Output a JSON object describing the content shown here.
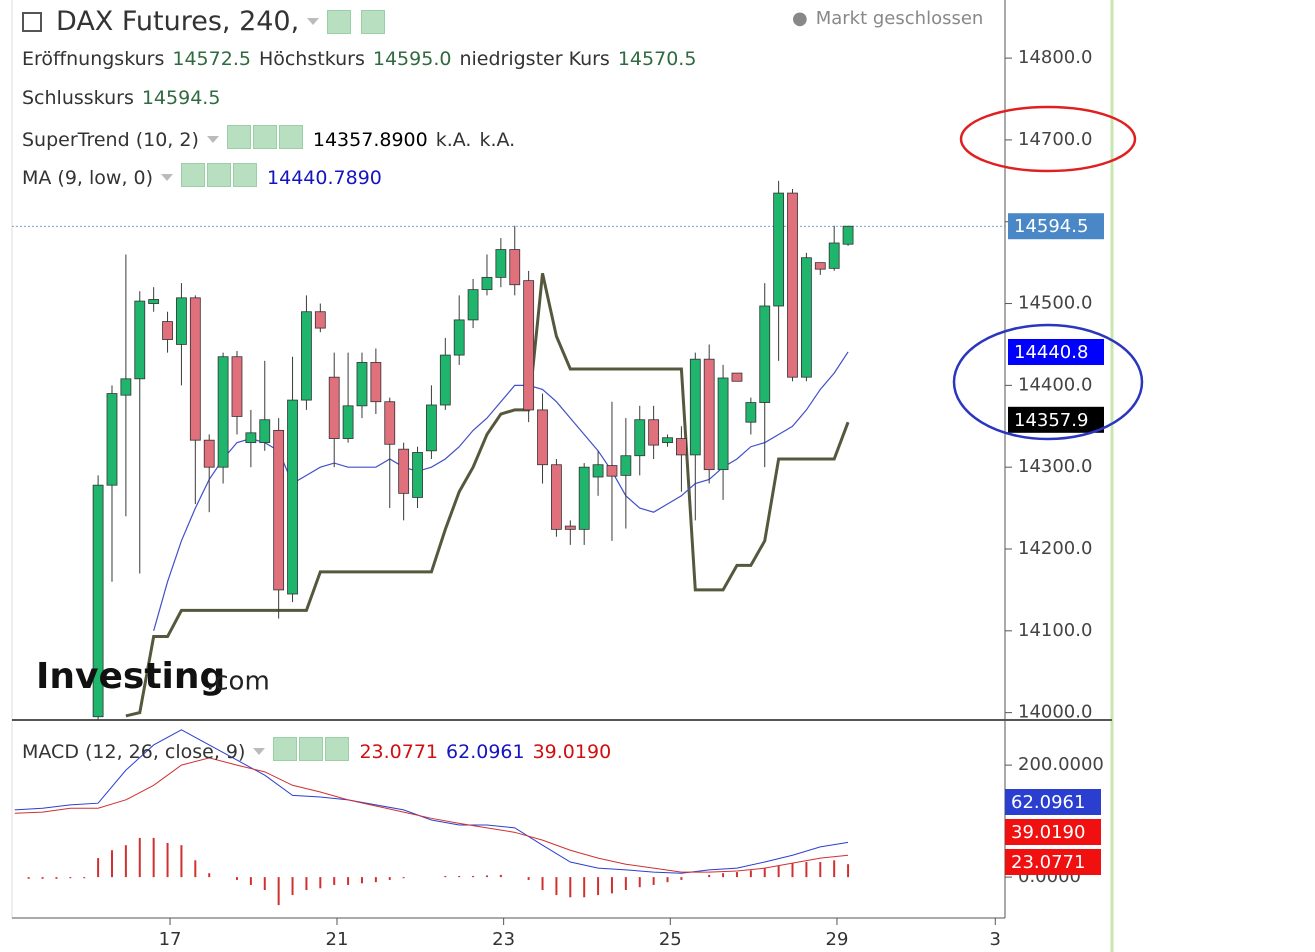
{
  "header": {
    "title": "DAX Futures, 240,",
    "status": "Markt geschlossen",
    "ohlc": [
      {
        "label": "Eröffnungskurs",
        "value": "14572.5"
      },
      {
        "label": "Höchstkurs",
        "value": "14595.0"
      },
      {
        "label": "niedrigster Kurs",
        "value": "14570.5"
      },
      {
        "label": "Schlusskurs",
        "value": "14594.5"
      }
    ]
  },
  "watermark": {
    "brand": "Investing",
    "suffix": ".com"
  },
  "chart_data": [
    {
      "type": "candlestick",
      "up_color": "#1fb56c",
      "down_color": "#e0707c",
      "xlim": [
        -6.2,
        65.3
      ],
      "ylim": [
        13991,
        14871
      ],
      "yticks": [
        {
          "value": 14000,
          "label": "14000.0"
        },
        {
          "value": 14100,
          "label": "14100.0"
        },
        {
          "value": 14200,
          "label": "14200.0"
        },
        {
          "value": 14300,
          "label": "14300.0"
        },
        {
          "value": 14400,
          "label": "14400.0"
        },
        {
          "value": 14500,
          "label": "14500.0"
        },
        {
          "value": 14600,
          "label": "14600.0"
        },
        {
          "value": 14700,
          "label": "14700.0"
        },
        {
          "value": 14800,
          "label": "14800.0"
        }
      ],
      "x": [
        0,
        1,
        2,
        3,
        4,
        5,
        6,
        7,
        8,
        9,
        10,
        11,
        12,
        13,
        14,
        15,
        16,
        17,
        18,
        19,
        20,
        21,
        22,
        23,
        24,
        25,
        26,
        27,
        28,
        29,
        30,
        31,
        32,
        33,
        34,
        35,
        36,
        37,
        38,
        39,
        40,
        41,
        42,
        43,
        44,
        45,
        46,
        47,
        48,
        49,
        50,
        51,
        52,
        53,
        54
      ],
      "open": [
        13995,
        14278,
        14388,
        14408,
        14500,
        14478,
        14450,
        14507,
        14333,
        14300,
        14435,
        14330,
        14330,
        14345,
        14145,
        14382,
        14490,
        14410,
        14335,
        14375,
        14428,
        14380,
        14322,
        14263,
        14320,
        14376,
        14437,
        14480,
        14517,
        14532,
        14566,
        14528,
        14370,
        14303,
        14228,
        14224,
        14288,
        14302,
        14290,
        14314,
        14358,
        14330,
        14335,
        14315,
        14432,
        14297,
        14415,
        14355,
        14379,
        14497,
        14635,
        14410,
        14550,
        14543,
        14572.5
      ],
      "high": [
        14290,
        14400,
        14560,
        14515,
        14520,
        14490,
        14525,
        14510,
        14340,
        14440,
        14442,
        14370,
        14430,
        14360,
        14435,
        14510,
        14500,
        14440,
        14440,
        14440,
        14445,
        14385,
        14330,
        14325,
        14400,
        14458,
        14510,
        14530,
        14560,
        14580,
        14595,
        14540,
        14390,
        14310,
        14235,
        14305,
        14320,
        14380,
        14360,
        14375,
        14375,
        14340,
        14350,
        14440,
        14450,
        14425,
        14415,
        14385,
        14525,
        14650,
        14640,
        14562,
        14550,
        14595,
        14595
      ],
      "low": [
        13960,
        14160,
        14240,
        14170,
        14490,
        14440,
        14400,
        14255,
        14245,
        14280,
        14340,
        14300,
        14320,
        14115,
        14135,
        14370,
        14465,
        14300,
        14330,
        14360,
        14365,
        14250,
        14235,
        14250,
        14310,
        14370,
        14425,
        14470,
        14510,
        14520,
        14510,
        14355,
        14280,
        14215,
        14205,
        14205,
        14265,
        14210,
        14225,
        14290,
        14310,
        14325,
        14270,
        14235,
        14280,
        14260,
        14405,
        14340,
        14300,
        14430,
        14405,
        14405,
        14535,
        14540,
        14570.5
      ],
      "close": [
        14278,
        14390,
        14408,
        14503,
        14505,
        14456,
        14507,
        14333,
        14300,
        14435,
        14362,
        14342,
        14358,
        14150,
        14382,
        14490,
        14470,
        14335,
        14375,
        14428,
        14380,
        14328,
        14268,
        14318,
        14376,
        14437,
        14480,
        14517,
        14532,
        14566,
        14523,
        14370,
        14303,
        14224,
        14224,
        14300,
        14303,
        14289,
        14314,
        14358,
        14327,
        14336,
        14315,
        14432,
        14297,
        14409,
        14405,
        14379,
        14497,
        14635,
        14410,
        14556,
        14542,
        14574,
        14594.5
      ],
      "series": [
        {
          "name": "SuperTrend (10, 2)",
          "color": "#55583c",
          "width": 3,
          "legend_values": [
            "14357.8900",
            "k.A.",
            "k.A."
          ],
          "values": [
            null,
            null,
            13996,
            14000,
            14093,
            14093,
            14125,
            14125,
            14125,
            14125,
            14125,
            14125,
            14125,
            14125,
            14125,
            14125,
            14172,
            14172,
            14172,
            14172,
            14172,
            14172,
            14172,
            14172,
            14172,
            14224,
            14270,
            14300,
            14340,
            14365,
            14370,
            14370,
            14537,
            14460,
            14420,
            14420,
            14420,
            14420,
            14420,
            14420,
            14420,
            14420,
            14420,
            14150,
            14150,
            14150,
            14180,
            14180,
            14210,
            14310,
            14310,
            14310,
            14310,
            14310,
            14355
          ]
        },
        {
          "name": "MA (9, low, 0)",
          "color": "#4050c8",
          "width": 1.2,
          "legend_values": [
            "14440.7890"
          ],
          "values": [
            null,
            null,
            null,
            null,
            14100,
            14160,
            14210,
            14250,
            14285,
            14310,
            14330,
            14335,
            14330,
            14320,
            14280,
            14290,
            14300,
            14305,
            14300,
            14300,
            14300,
            14310,
            14300,
            14295,
            14300,
            14310,
            14325,
            14345,
            14360,
            14380,
            14400,
            14400,
            14395,
            14380,
            14360,
            14340,
            14320,
            14295,
            14265,
            14250,
            14245,
            14255,
            14265,
            14280,
            14285,
            14300,
            14310,
            14325,
            14330,
            14340,
            14350,
            14370,
            14395,
            14415,
            14440.8
          ]
        }
      ],
      "price_markers": [
        {
          "value": 14594.5,
          "color": "#4a87c7"
        },
        {
          "value": 14440.8,
          "color": "#0000ff"
        },
        {
          "value": 14357.9,
          "color": "#000000"
        }
      ]
    },
    {
      "type": "macd",
      "name": "MACD (12, 26, close, 9)",
      "xlim": [
        -6.2,
        65.3
      ],
      "ylim": [
        -73,
        277
      ],
      "yticks": [
        {
          "value": 200,
          "label": "200.0000"
        },
        {
          "value": 0,
          "label": "0.0000"
        }
      ],
      "xticks": [
        {
          "value": 5.18,
          "label": "17"
        },
        {
          "value": 17.2,
          "label": "21"
        },
        {
          "value": 29.2,
          "label": "23"
        },
        {
          "value": 41.2,
          "label": "25"
        },
        {
          "value": 53.2,
          "label": "29"
        },
        {
          "value": 64.6,
          "label": "3"
        }
      ],
      "x": [
        -6,
        -4,
        -2,
        0,
        2,
        4,
        6,
        8,
        10,
        12,
        14,
        16,
        18,
        20,
        22,
        24,
        26,
        28,
        30,
        32,
        34,
        36,
        38,
        40,
        42,
        44,
        46,
        48,
        50,
        52,
        54
      ],
      "series": [
        {
          "color": "#2a3fd0",
          "legend_value": "62.0961",
          "values": [
            120,
            123,
            129,
            132,
            191,
            236,
            263,
            236,
            209,
            182,
            146,
            143,
            138,
            129,
            120,
            102,
            93,
            93,
            88,
            57,
            27,
            16,
            13,
            9,
            7,
            13,
            16,
            27,
            39,
            54,
            62.0961
          ]
        },
        {
          "color": "#d03030",
          "legend_value": "39.0190",
          "values": [
            114,
            116,
            123,
            123,
            138,
            164,
            200,
            213,
            200,
            188,
            164,
            152,
            138,
            127,
            116,
            105,
            96,
            88,
            80,
            66,
            48,
            34,
            23,
            16,
            9,
            9,
            11,
            16,
            25,
            34,
            39.019
          ]
        }
      ],
      "histogram": {
        "color": "#d03030",
        "legend_value": "23.0771",
        "x": [
          -5,
          -4,
          -3,
          -2,
          -1,
          0,
          1,
          2,
          3,
          4,
          5,
          6,
          7,
          8,
          9,
          10,
          11,
          12,
          13,
          14,
          15,
          16,
          17,
          18,
          19,
          20,
          21,
          22,
          23,
          24,
          25,
          26,
          27,
          28,
          29,
          30,
          31,
          32,
          33,
          34,
          35,
          36,
          37,
          38,
          39,
          40,
          41,
          42,
          43,
          44,
          45,
          46,
          47,
          48,
          49,
          50,
          51,
          52,
          53,
          54
        ],
        "values": [
          -3,
          -3,
          -3,
          -2,
          -2,
          34,
          48,
          57,
          70,
          70,
          61,
          57,
          30,
          7,
          0,
          -5,
          -14,
          -23,
          -50,
          -32,
          -23,
          -20,
          -14,
          -14,
          -11,
          -9,
          -5,
          -2,
          0,
          0,
          2,
          2,
          2,
          3,
          4,
          0,
          -5,
          -23,
          -32,
          -36,
          -36,
          -32,
          -29,
          -23,
          -18,
          -14,
          -9,
          -5,
          0,
          4,
          7,
          9,
          12,
          16,
          20,
          25,
          27,
          27,
          30,
          23.0771
        ]
      }
    }
  ]
}
